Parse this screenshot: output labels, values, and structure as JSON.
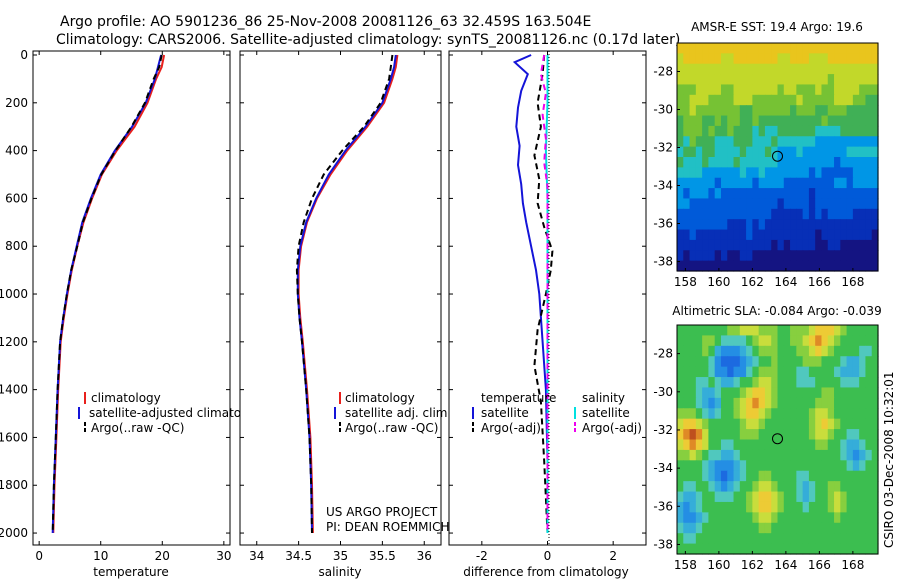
{
  "figure": {
    "title_line1": "Argo profile: AO 5901236_86 25-Nov-2008 20081126_63 32.459S 163.504E",
    "title_line2": "Climatology: CARS2006. Satellite-adjusted climatology: synTS_20081126.nc (0.17d later)",
    "credit_line1": "US ARGO PROJECT",
    "credit_line2": "PI: DEAN ROEMMICH",
    "stamp": "CSIRO 03-Dec-2008 10:32:01"
  },
  "colors": {
    "climatology": "#e8201c",
    "satellite": "#1414d8",
    "argo": "#000000",
    "sal_satellite": "#00e0e0",
    "sal_argo": "#ee00ee",
    "marker": "#000000"
  },
  "chart_data": [
    {
      "id": "temperature",
      "type": "line",
      "xlabel": "temperature",
      "ylabel": "",
      "xlim": [
        -1,
        31
      ],
      "ylim": [
        2050,
        0
      ],
      "xticks": [
        "0",
        "10",
        "20",
        "30"
      ],
      "yticks": [
        "0",
        "200",
        "400",
        "600",
        "800",
        "1000",
        "1200",
        "1400",
        "1600",
        "1800",
        "2000"
      ],
      "legend": [
        "climatology",
        "satellite-adjusted climatology",
        "Argo(..raw -QC)"
      ],
      "legend_visible": [
        "climatology",
        "satellite-adjusted climatolog",
        "Argo(..raw -QC)"
      ],
      "series": [
        {
          "name": "climatology",
          "style": "solid",
          "color_key": "climatology",
          "x": [
            20.3,
            19.9,
            19.0,
            17.6,
            15.5,
            12.6,
            10.2,
            8.6,
            7.2,
            6.2,
            5.3,
            4.6,
            4.0,
            3.5,
            3.1,
            2.8,
            2.5,
            2.3
          ],
          "y": [
            0,
            50,
            100,
            200,
            300,
            400,
            500,
            600,
            700,
            800,
            900,
            1000,
            1100,
            1200,
            1400,
            1600,
            1800,
            2000
          ]
        },
        {
          "name": "satellite-adjusted climatology",
          "style": "solid",
          "color_key": "satellite",
          "x": [
            19.8,
            19.3,
            18.8,
            17.3,
            15.1,
            12.3,
            10.0,
            8.4,
            7.0,
            6.1,
            5.2,
            4.5,
            3.9,
            3.4,
            3.0,
            2.7,
            2.4,
            2.2
          ],
          "y": [
            0,
            50,
            100,
            200,
            300,
            400,
            500,
            600,
            700,
            800,
            900,
            1000,
            1100,
            1200,
            1400,
            1600,
            1800,
            2000
          ]
        },
        {
          "name": "Argo(..raw -QC)",
          "style": "dashed",
          "color_key": "argo",
          "x": [
            19.9,
            19.5,
            18.6,
            17.2,
            15.0,
            12.4,
            10.1,
            8.5,
            7.1,
            6.2,
            5.2,
            4.5,
            3.9,
            3.4,
            3.0,
            2.7,
            2.4,
            2.2
          ],
          "y": [
            0,
            50,
            100,
            200,
            300,
            400,
            500,
            600,
            700,
            800,
            900,
            1000,
            1100,
            1200,
            1400,
            1600,
            1800,
            2000
          ]
        }
      ]
    },
    {
      "id": "salinity",
      "type": "line",
      "xlabel": "salinity",
      "ylabel": "",
      "xlim": [
        33.8,
        36.2
      ],
      "ylim": [
        2050,
        0
      ],
      "xticks": [
        "34",
        "34.5",
        "35",
        "35.5",
        "36"
      ],
      "legend": [
        "climatology",
        "satellite adj. clim.",
        "Argo(..raw -QC)"
      ],
      "series": [
        {
          "name": "climatology",
          "style": "solid",
          "color_key": "climatology",
          "x": [
            35.68,
            35.66,
            35.62,
            35.52,
            35.32,
            35.08,
            34.88,
            34.72,
            34.6,
            34.53,
            34.5,
            34.5,
            34.52,
            34.55,
            34.6,
            34.64,
            34.66,
            34.67
          ],
          "y": [
            0,
            50,
            100,
            200,
            300,
            400,
            500,
            600,
            700,
            800,
            900,
            1000,
            1100,
            1200,
            1400,
            1600,
            1800,
            2000
          ]
        },
        {
          "name": "satellite adj. clim.",
          "style": "solid",
          "color_key": "satellite",
          "x": [
            35.66,
            35.64,
            35.6,
            35.5,
            35.3,
            35.06,
            34.86,
            34.71,
            34.59,
            34.52,
            34.49,
            34.49,
            34.51,
            34.54,
            34.59,
            34.63,
            34.65,
            34.66
          ],
          "y": [
            0,
            50,
            100,
            200,
            300,
            400,
            500,
            600,
            700,
            800,
            900,
            1000,
            1100,
            1200,
            1400,
            1600,
            1800,
            2000
          ]
        },
        {
          "name": "Argo(..raw -QC)",
          "style": "dashed",
          "color_key": "argo",
          "x": [
            35.62,
            35.6,
            35.58,
            35.48,
            35.28,
            35.02,
            34.8,
            34.66,
            34.56,
            34.5,
            34.48,
            34.49,
            34.51,
            34.54,
            34.59,
            34.63,
            34.65,
            34.66
          ],
          "y": [
            0,
            50,
            100,
            200,
            300,
            400,
            500,
            600,
            700,
            800,
            900,
            1000,
            1100,
            1200,
            1400,
            1600,
            1800,
            2000
          ]
        }
      ]
    },
    {
      "id": "difference",
      "type": "line",
      "xlabel": "difference from climatology",
      "ylabel": "",
      "xlim": [
        -3,
        3
      ],
      "ylim": [
        2050,
        0
      ],
      "xticks": [
        "-2",
        "0",
        "2"
      ],
      "legend_temperature_title": "temperature",
      "legend_salinity_title": "salinity",
      "legend_temperature": [
        "satellite",
        "Argo(-adj)"
      ],
      "legend_salinity": [
        "satellite",
        "Argo(-adj)"
      ],
      "series": [
        {
          "name": "temperature satellite",
          "style": "solid",
          "color_key": "satellite",
          "x": [
            -0.5,
            -1.0,
            -0.6,
            -0.8,
            -0.9,
            -0.95,
            -0.85,
            -0.9,
            -0.8,
            -0.75,
            -0.65,
            -0.5,
            -0.35,
            -0.25,
            -0.15,
            -0.05,
            0.0,
            0.0
          ],
          "y": [
            0,
            30,
            80,
            150,
            220,
            300,
            380,
            460,
            540,
            620,
            700,
            800,
            900,
            1000,
            1200,
            1400,
            1700,
            2000
          ]
        },
        {
          "name": "temperature Argo(-adj)",
          "style": "dashed",
          "color_key": "argo",
          "x": [
            -0.1,
            -0.15,
            -0.3,
            -0.2,
            -0.4,
            -0.25,
            -0.3,
            -0.1,
            0.15,
            0.1,
            -0.05,
            -0.3,
            -0.4,
            -0.2,
            -0.1,
            0.0
          ],
          "y": [
            0,
            80,
            200,
            300,
            420,
            520,
            620,
            720,
            820,
            900,
            1000,
            1150,
            1300,
            1450,
            1700,
            2000
          ]
        },
        {
          "name": "salinity satellite",
          "style": "solid",
          "color_key": "sal_satellite",
          "x": [
            0.0,
            0.0,
            -0.05,
            0.0,
            0.0,
            0.0,
            0.0
          ],
          "y": [
            0,
            200,
            400,
            600,
            1000,
            1500,
            2000
          ]
        },
        {
          "name": "salinity Argo(-adj)",
          "style": "dashed",
          "color_key": "sal_argo",
          "x": [
            -0.1,
            -0.2,
            -0.05,
            -0.15,
            -0.05,
            -0.1,
            0.0,
            0.0,
            0.0
          ],
          "y": [
            0,
            80,
            160,
            250,
            350,
            450,
            550,
            1000,
            2000
          ]
        }
      ]
    },
    {
      "id": "sst_map",
      "type": "heatmap",
      "title": "AMSR-E SST: 19.4 Argo: 19.6",
      "xticks": [
        "158",
        "160",
        "162",
        "164",
        "166",
        "168"
      ],
      "yticks": [
        "-28",
        "-30",
        "-32",
        "-34",
        "-36",
        "-38"
      ],
      "lon_range": [
        157.5,
        169.5
      ],
      "lat_range": [
        -38.5,
        -26.5
      ],
      "marker": {
        "lon": 163.5,
        "lat": -32.46
      },
      "value_range": [
        17.5,
        21.5
      ],
      "rows_north_to_south": [
        "XXXXXXXXXXXXXXXXXXXXXXXXXXXXXXXX",
        "WXXXXXXWWXXXXXXXWWXXXWWWXXXXXXXX",
        "WWWWWWWWWWWWWWWWWWWWWWWWWWWWWWWW",
        "WWWWWWWWWWWWWWWWWWWWWWWWVWWWWWWW",
        "VVVWWWWVVWWWWWWWVWWVVVWVVWWWWVVV",
        "VVWWWVVVVWWWVVVVVVVWVVVVVWWWVVUU",
        "VVWVVVVVVVUUVVVVVVUVVVUUVVVUUUUU",
        "UVVVUUVUVVUUVUUUUUUUUUUVUUUUUUUU",
        "UVVVUVUUVUUUTUTTUUUUUUTTTTUUUUUU",
        "UTVUUUTTTUUUTTTUTTTTTTSSSSSSSSSS",
        "TUUTUUTTTTUTTTUTSSSTSSSSSSSTTTTT",
        "UTTTUTTTTUTTTTTTSSSSSSSSSRSSSSSS",
        "TTTTSSSSSSTSSTSSSSSSSRSRRRRRSSSS",
        "SSSSSSRSSSSSRSSSSRRRRRRRRSSRSSSS",
        "SRSSSRSRRRRRRRRRRRRRRQRRRRRRRRRR",
        "SSRRRRRRRRRRRRRRQRRRRQRRRRRRRRRR",
        "RRRRRRRRRRRRRRRQQQQQRQRQRRRRQQQQ",
        "RRRRRRRRQQQRQRQQQQQQQQQQQQQQQQQQ",
        "QQRQQQQQQQQRQQQQQQQQQQPQQQQQQQQP",
        "QQQQQQQQQQQQQQQPQPQQQQPPQQPPPPPP",
        "QPQQQQPQPPQQPPPPPPPPPPPPPPPPPPPP",
        "PPPPPPPPPPPPPPPPPPPPPPPPPPPPPPPP"
      ]
    },
    {
      "id": "sla_map",
      "type": "heatmap",
      "title": "Altimetric SLA: -0.084 Argo: -0.039",
      "xticks": [
        "158",
        "160",
        "162",
        "164",
        "166",
        "168"
      ],
      "yticks": [
        "-28",
        "-30",
        "-32",
        "-34",
        "-36",
        "-38"
      ],
      "lon_range": [
        157.5,
        169.5
      ],
      "lat_range": [
        -38.5,
        -26.5
      ],
      "marker": {
        "lon": 163.5,
        "lat": -32.46
      },
      "value_range": [
        -0.3,
        0.3
      ],
      "rows_north_to_south": [
        "UUUUUUUUVVWWWVVVUUVVVWXXXWVUUUUU",
        "UUUUVVUTTTTUVWWVUUVVWXYXWVUUUUUU",
        "UUUUVUSRRRSTUVVVUUUVVWXWVUUUUTTU",
        "UUUUUTRQQQRSTUUVUUUUVVVUUUTSSTUU",
        "UUUUUTRRQRRTUVVVUUUTTUUUUTSSSTUU",
        "UUUTTUTSSTUUVWWVUUUTTTUUUUTTTUUU",
        "UUUTSSTUUUVWXXWVUUUUUUUVVUUUUUUU",
        "UUUTSRSUUVWXYXWVUUUUUUVVVUUUUUUU",
        "VVVUTSTUUVWXXWVUUUUUUVWWVUUUUUUU",
        "WXXWVUUUUUVWWVUUUUUUUVWXWVUUUUUU",
        "XYZYWUUUUUVVVUUUUUUUUVWWVUUTTUUU",
        "WXYXWUUTTUUUUUUUUUUUUUVVUUTSSTUU",
        "VVWVUTTSSTUUUUUUUUUUUUUUUUTSRSTU",
        "UUUUTSRRRSTUUUUUUUUUUUUUUUUTSTUU",
        "UUUUTSRQRSTUUVVUUUUTTUUUUUUUUUUU",
        "UTTUUTSRSTUUVWWVUUUTSTUUVVUUUUUU",
        "TSSTUUTTTUUVWXXWVUUTSTUUVWVUUUUU",
        "SRSTUUUUUUUVWXXWVUUUTUUUVWVUUUUU",
        "SRRSTUUUUUUUVWWVUUUUUUUUUVUUUUUU",
        "TSSTUUUUUUUUUVVUUUUUUUUUUUUUUUUU",
        "UTTUUUUUUUUUUUUUUUUUUUUUUUUUUUUU",
        "UUUUUUUUUUUUUUUUUUUUUUUUUUUUUUUU"
      ]
    }
  ]
}
